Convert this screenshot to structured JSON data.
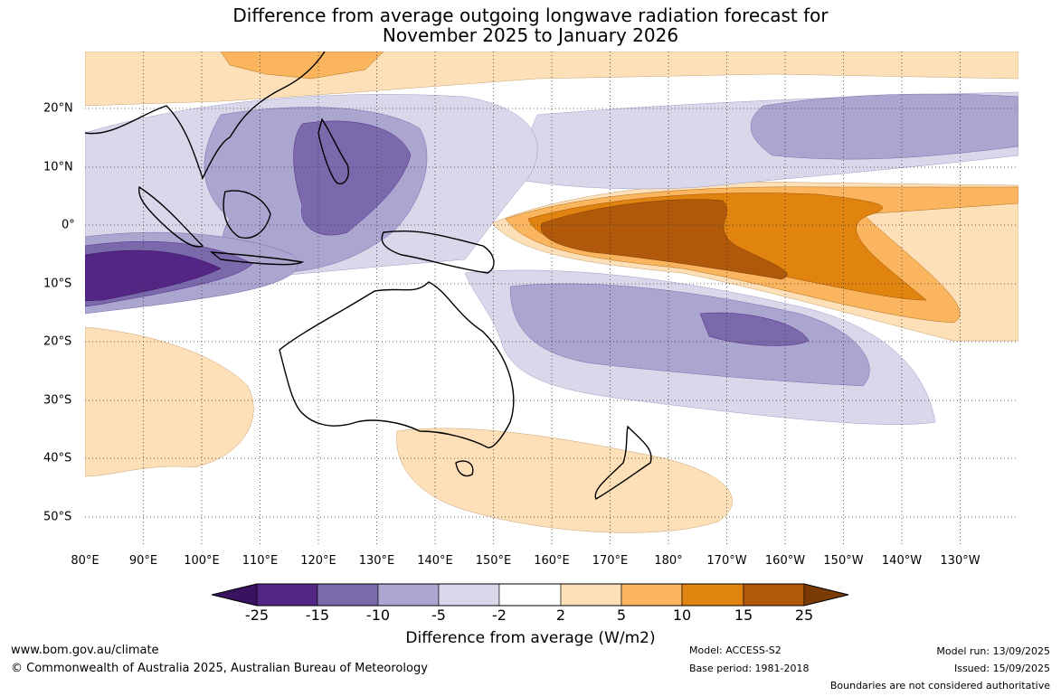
{
  "title_line1": "Difference from average outgoing longwave radiation forecast for",
  "title_line2": "November 2025 to January 2026",
  "longitude_labels": [
    "80°E",
    "90°E",
    "100°E",
    "110°E",
    "120°E",
    "130°E",
    "140°E",
    "150°E",
    "160°E",
    "170°E",
    "180°",
    "170°W",
    "160°W",
    "150°W",
    "140°W",
    "130°W"
  ],
  "latitude_labels": [
    "20°N",
    "10°N",
    "0°",
    "10°S",
    "20°S",
    "30°S",
    "40°S",
    "50°S"
  ],
  "colorbar": {
    "label": "Difference from average (W/m2)",
    "ticks": [
      "-25",
      "-15",
      "-10",
      "-5",
      "-2",
      "2",
      "5",
      "10",
      "15",
      "25"
    ],
    "colors": [
      "#3a1360",
      "#532585",
      "#7b6aab",
      "#aba6d0",
      "#d9d8eb",
      "#ffffff",
      "#fde0b7",
      "#fbb55f",
      "#e1830f",
      "#b0590b",
      "#7a3a05"
    ]
  },
  "footer": {
    "website": "www.bom.gov.au/climate",
    "copyright": "© Commonwealth of Australia 2025, Australian Bureau of Meteorology",
    "model": "Model: ACCESS-S2",
    "base_period": "Base period: 1981-2018",
    "model_run": "Model run: 13/09/2025",
    "issued": "Issued: 15/09/2025",
    "disclaimer": "Boundaries are not considered authoritative"
  }
}
